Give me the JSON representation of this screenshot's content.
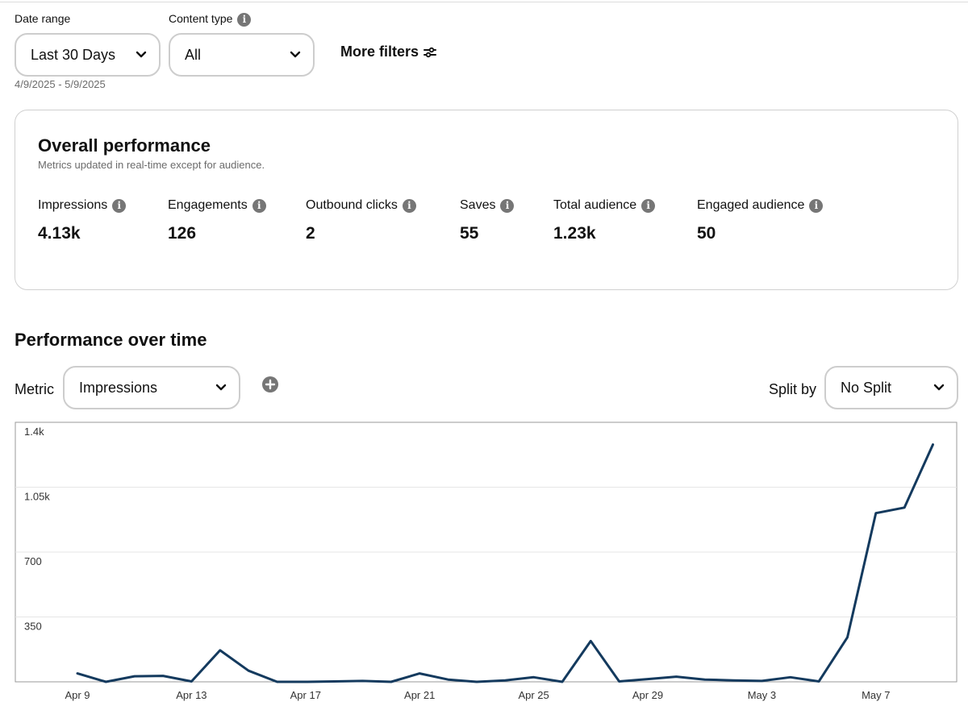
{
  "filters": {
    "date_range_label": "Date range",
    "date_range_value": "Last 30 Days",
    "date_range_dates": "4/9/2025 - 5/9/2025",
    "content_type_label": "Content type",
    "content_type_value": "All",
    "more_filters_label": "More filters"
  },
  "overall": {
    "title": "Overall performance",
    "subtitle": "Metrics updated in real-time except for audience.",
    "metrics": [
      {
        "label": "Impressions",
        "value": "4.13k"
      },
      {
        "label": "Engagements",
        "value": "126"
      },
      {
        "label": "Outbound clicks",
        "value": "2"
      },
      {
        "label": "Saves",
        "value": "55"
      },
      {
        "label": "Total audience",
        "value": "1.23k"
      },
      {
        "label": "Engaged audience",
        "value": "50"
      }
    ]
  },
  "over_time": {
    "title": "Performance over time",
    "metric_label": "Metric",
    "metric_value": "Impressions",
    "split_label": "Split by",
    "split_value": "No Split"
  },
  "colors": {
    "line": "#143a5e",
    "grid": "#e6e6e6",
    "border": "#cdcdcd",
    "icon_gray": "#767676"
  },
  "icons": {
    "info": "info-icon",
    "chevron": "chevron-down-icon",
    "filters": "sliders-icon",
    "add": "plus-circle-icon"
  },
  "chart_data": {
    "type": "line",
    "y_ticks": [
      "1.4k",
      "1.05k",
      "700",
      "350"
    ],
    "ylim": [
      0,
      1400
    ],
    "x_tick_labels": [
      "Apr 9",
      "Apr 13",
      "Apr 17",
      "Apr 21",
      "Apr 25",
      "Apr 29",
      "May 3",
      "May 7"
    ],
    "x": [
      "Apr 9",
      "Apr 10",
      "Apr 11",
      "Apr 12",
      "Apr 13",
      "Apr 14",
      "Apr 15",
      "Apr 16",
      "Apr 17",
      "Apr 18",
      "Apr 19",
      "Apr 20",
      "Apr 21",
      "Apr 22",
      "Apr 23",
      "Apr 24",
      "Apr 25",
      "Apr 26",
      "Apr 27",
      "Apr 28",
      "Apr 29",
      "Apr 30",
      "May 1",
      "May 2",
      "May 3",
      "May 4",
      "May 5",
      "May 6",
      "May 7",
      "May 8",
      "May 9"
    ],
    "series": [
      {
        "values": [
          45,
          0,
          30,
          32,
          2,
          170,
          60,
          0,
          0,
          2,
          5,
          0,
          45,
          12,
          0,
          8,
          25,
          0,
          220,
          2,
          15,
          28,
          12,
          8,
          5,
          25,
          2,
          240,
          910,
          940,
          1280
        ]
      }
    ],
    "grid": true,
    "legend": "none"
  }
}
